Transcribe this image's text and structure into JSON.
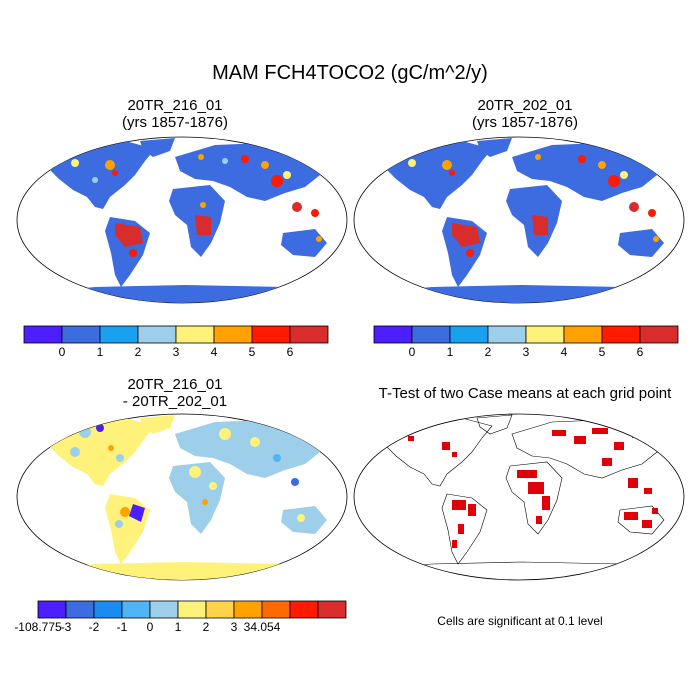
{
  "title": "MAM FCH4TOCO2 (gC/m^2/y)",
  "panels": [
    {
      "id": "case1",
      "title_line1": "20TR_216_01",
      "title_line2": "(yrs 1857-1876)"
    },
    {
      "id": "case2",
      "title_line1": "20TR_202_01",
      "title_line2": "(yrs 1857-1876)"
    },
    {
      "id": "diff",
      "title_line1": "20TR_216_01",
      "title_line2": "- 20TR_202_01"
    },
    {
      "id": "ttest",
      "title_line1": "T-Test of two Case means at each grid point",
      "title_line2": ""
    }
  ],
  "colorbar_top": {
    "colors": [
      "#4b1fff",
      "#3d6be0",
      "#1aa0f0",
      "#9dcfea",
      "#fff27a",
      "#ffa200",
      "#ff1a00",
      "#d92c2c"
    ],
    "labels": [
      "0",
      "1",
      "2",
      "3",
      "4",
      "5",
      "6"
    ]
  },
  "colorbar_diff": {
    "colors": [
      "#4b1fff",
      "#3d6be0",
      "#1a8cf0",
      "#4fb5f5",
      "#9dcfea",
      "#fff27a",
      "#ffd24a",
      "#ffa200",
      "#ff6a00",
      "#ff1a00",
      "#d92c2c"
    ],
    "labels": [
      "-108.775",
      "-3",
      "-2",
      "-1",
      "0",
      "1",
      "2",
      "3",
      "34.054"
    ]
  },
  "significance_note": "Cells are significant at 0.1 level"
}
